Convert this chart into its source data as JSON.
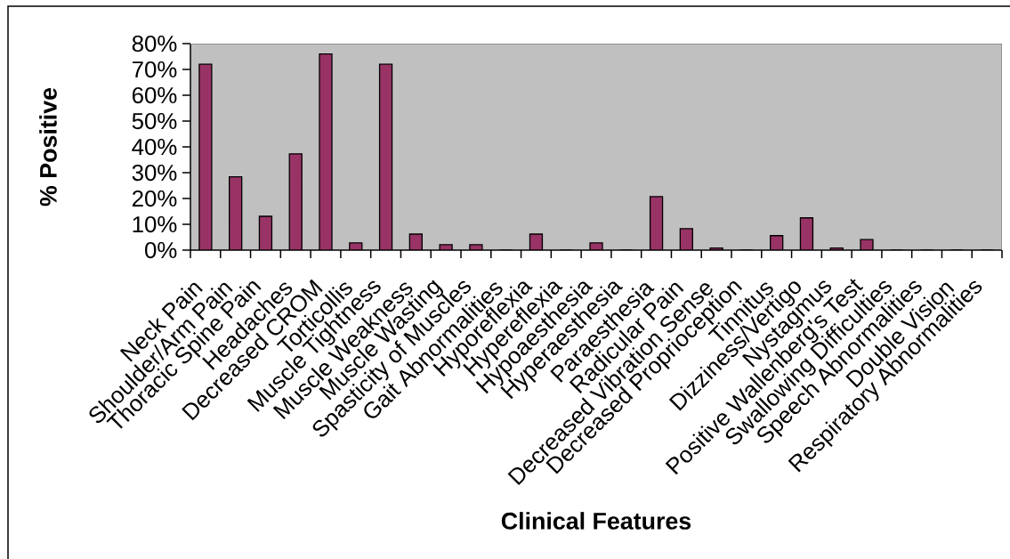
{
  "chart_data": {
    "type": "bar",
    "xlabel": "Clinical Features",
    "ylabel": "% Positive",
    "categories": [
      "Neck Pain",
      "Shoulder/Arm Pain",
      "Thoracic Spine Pain",
      "Headaches",
      "Decreased CROM",
      "Torticollis",
      "Muscle Tightness",
      "Muscle Weakness",
      "Muscle Wasting",
      "Spasticity of Muscles",
      "Gait Abnormalities",
      "Hyporeflexia",
      "Hypereflexia",
      "Hypoaesthesia",
      "Hyperaesthesia",
      "Paraesthesia",
      "Radicular Pain",
      "Decreased Vibration Sense",
      "Decreased Proprioception",
      "Tinnitus",
      "Dizziness/Vertigo",
      "Nystagmus",
      "Positive Wallenberg's Test",
      "Swallowing Difficulties",
      "Speech Abnormalities",
      "Double Vision",
      "Respiratory Abnormalities"
    ],
    "values": [
      72,
      28.4,
      13.1,
      37.3,
      76,
      2.8,
      72,
      6.2,
      2.1,
      2.1,
      0,
      6.2,
      0,
      2.8,
      0,
      20.7,
      8.3,
      0.8,
      0,
      5.6,
      12.5,
      0.8,
      4.1,
      0,
      0,
      0,
      0
    ],
    "color": "#993366",
    "ylim": [
      0,
      80
    ],
    "yticks": [
      {
        "value": 0,
        "label": "0%"
      },
      {
        "value": 10,
        "label": "10%"
      },
      {
        "value": 20,
        "label": "20%"
      },
      {
        "value": 30,
        "label": "30%"
      },
      {
        "value": 40,
        "label": "40%"
      },
      {
        "value": 50,
        "label": "50%"
      },
      {
        "value": 60,
        "label": "60%"
      },
      {
        "value": 70,
        "label": "70%"
      },
      {
        "value": 80,
        "label": "80%"
      }
    ]
  }
}
